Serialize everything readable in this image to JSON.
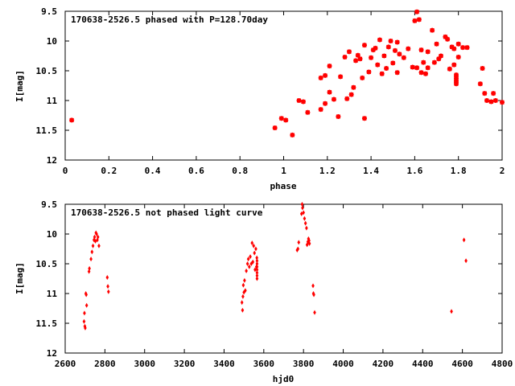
{
  "chart_data": [
    {
      "type": "scatter",
      "title": "170638-2526.5 phased with P=128.70day",
      "xlabel": "phase",
      "ylabel": "I[mag]",
      "xlim": [
        0,
        2
      ],
      "ylim": [
        9.5,
        12
      ],
      "y_inverted": true,
      "x_ticks": [
        "0",
        "0.2",
        "0.4",
        "0.6",
        "0.8",
        "1",
        "1.2",
        "1.4",
        "1.6",
        "1.8",
        "2"
      ],
      "x_tick_values": [
        0,
        0.2,
        0.4,
        0.6,
        0.8,
        1.0,
        1.2,
        1.4,
        1.6,
        1.8,
        2.0
      ],
      "y_ticks": [
        "9.5",
        "10",
        "10.5",
        "11",
        "11.5",
        "12"
      ],
      "y_tick_values": [
        9.5,
        10,
        10.5,
        11,
        11.5,
        12
      ],
      "grid": false,
      "marker_color": "#ff0000",
      "points": [
        [
          0.03,
          11.33
        ],
        [
          0.96,
          11.46
        ],
        [
          0.99,
          11.3
        ],
        [
          1.01,
          11.33
        ],
        [
          1.04,
          11.58
        ],
        [
          1.07,
          11.0
        ],
        [
          1.09,
          11.02
        ],
        [
          1.11,
          11.2
        ],
        [
          1.17,
          11.15
        ],
        [
          1.17,
          10.62
        ],
        [
          1.19,
          10.58
        ],
        [
          1.19,
          11.05
        ],
        [
          1.21,
          10.42
        ],
        [
          1.21,
          10.86
        ],
        [
          1.23,
          10.98
        ],
        [
          1.25,
          11.27
        ],
        [
          1.26,
          10.6
        ],
        [
          1.28,
          10.27
        ],
        [
          1.29,
          10.97
        ],
        [
          1.3,
          10.18
        ],
        [
          1.31,
          10.9
        ],
        [
          1.32,
          10.78
        ],
        [
          1.33,
          10.33
        ],
        [
          1.34,
          10.24
        ],
        [
          1.35,
          10.3
        ],
        [
          1.36,
          10.62
        ],
        [
          1.37,
          10.07
        ],
        [
          1.37,
          11.3
        ],
        [
          1.39,
          10.52
        ],
        [
          1.4,
          10.28
        ],
        [
          1.41,
          10.15
        ],
        [
          1.42,
          10.12
        ],
        [
          1.43,
          10.4
        ],
        [
          1.44,
          9.98
        ],
        [
          1.45,
          10.55
        ],
        [
          1.46,
          10.25
        ],
        [
          1.47,
          10.46
        ],
        [
          1.48,
          10.1
        ],
        [
          1.49,
          10.0
        ],
        [
          1.5,
          10.37
        ],
        [
          1.51,
          10.16
        ],
        [
          1.52,
          10.53
        ],
        [
          1.52,
          10.02
        ],
        [
          1.53,
          10.22
        ],
        [
          1.55,
          10.28
        ],
        [
          1.57,
          10.13
        ],
        [
          1.59,
          10.44
        ],
        [
          1.6,
          9.66
        ],
        [
          1.61,
          9.51
        ],
        [
          1.61,
          10.45
        ],
        [
          1.62,
          9.64
        ],
        [
          1.63,
          10.53
        ],
        [
          1.63,
          10.15
        ],
        [
          1.64,
          10.36
        ],
        [
          1.65,
          10.55
        ],
        [
          1.66,
          10.45
        ],
        [
          1.66,
          10.18
        ],
        [
          1.68,
          9.82
        ],
        [
          1.69,
          10.36
        ],
        [
          1.7,
          10.05
        ],
        [
          1.71,
          10.3
        ],
        [
          1.72,
          10.25
        ],
        [
          1.74,
          9.93
        ],
        [
          1.75,
          9.97
        ],
        [
          1.76,
          10.47
        ],
        [
          1.77,
          10.1
        ],
        [
          1.78,
          10.13
        ],
        [
          1.78,
          10.4
        ],
        [
          1.79,
          10.57
        ],
        [
          1.79,
          10.6
        ],
        [
          1.79,
          10.63
        ],
        [
          1.79,
          10.66
        ],
        [
          1.79,
          10.69
        ],
        [
          1.79,
          10.72
        ],
        [
          1.8,
          10.05
        ],
        [
          1.8,
          10.27
        ],
        [
          1.82,
          10.11
        ],
        [
          1.84,
          10.11
        ],
        [
          1.9,
          10.72
        ],
        [
          1.91,
          10.46
        ],
        [
          1.92,
          10.88
        ],
        [
          1.93,
          11.0
        ],
        [
          1.95,
          11.02
        ],
        [
          1.96,
          10.88
        ],
        [
          1.97,
          11.0
        ],
        [
          2.0,
          11.03
        ]
      ]
    },
    {
      "type": "scatter",
      "title": "170638-2526.5 not phased light curve",
      "xlabel": "hjd0",
      "ylabel": "I[mag]",
      "xlim": [
        2600,
        4800
      ],
      "ylim": [
        9.5,
        12
      ],
      "y_inverted": true,
      "x_ticks": [
        "2600",
        "2800",
        "3000",
        "3200",
        "3400",
        "3600",
        "3800",
        "4000",
        "4200",
        "4400",
        "4600",
        "4800"
      ],
      "x_tick_values": [
        2600,
        2800,
        3000,
        3200,
        3400,
        3600,
        3800,
        4000,
        4200,
        4400,
        4600,
        4800
      ],
      "y_ticks": [
        "9.5",
        "10",
        "10.5",
        "11",
        "11.5",
        "12"
      ],
      "y_tick_values": [
        9.5,
        10,
        10.5,
        11,
        11.5,
        12
      ],
      "grid": false,
      "marker_color": "#ff0000",
      "points": [
        [
          2695,
          11.47
        ],
        [
          2697,
          11.33
        ],
        [
          2699,
          11.55
        ],
        [
          2701,
          11.58
        ],
        [
          2704,
          11.0
        ],
        [
          2706,
          11.02
        ],
        [
          2708,
          11.2
        ],
        [
          2720,
          10.63
        ],
        [
          2722,
          10.58
        ],
        [
          2730,
          10.42
        ],
        [
          2735,
          10.3
        ],
        [
          2740,
          10.2
        ],
        [
          2745,
          10.1
        ],
        [
          2748,
          10.05
        ],
        [
          2752,
          10.12
        ],
        [
          2755,
          9.98
        ],
        [
          2758,
          10.0
        ],
        [
          2762,
          10.1
        ],
        [
          2765,
          10.05
        ],
        [
          2770,
          10.2
        ],
        [
          2812,
          10.73
        ],
        [
          2815,
          10.88
        ],
        [
          2818,
          10.97
        ],
        [
          3490,
          11.15
        ],
        [
          3493,
          11.28
        ],
        [
          3495,
          11.05
        ],
        [
          3497,
          10.86
        ],
        [
          3500,
          10.98
        ],
        [
          3503,
          10.78
        ],
        [
          3507,
          10.95
        ],
        [
          3512,
          10.62
        ],
        [
          3518,
          10.5
        ],
        [
          3522,
          10.42
        ],
        [
          3527,
          10.55
        ],
        [
          3532,
          10.38
        ],
        [
          3537,
          10.5
        ],
        [
          3541,
          10.15
        ],
        [
          3545,
          10.47
        ],
        [
          3549,
          10.2
        ],
        [
          3553,
          10.32
        ],
        [
          3556,
          10.6
        ],
        [
          3560,
          10.25
        ],
        [
          3563,
          10.55
        ],
        [
          3565,
          10.4
        ],
        [
          3566,
          10.45
        ],
        [
          3566,
          10.5
        ],
        [
          3566,
          10.55
        ],
        [
          3566,
          10.6
        ],
        [
          3566,
          10.65
        ],
        [
          3566,
          10.7
        ],
        [
          3566,
          10.75
        ],
        [
          3768,
          10.27
        ],
        [
          3772,
          10.25
        ],
        [
          3776,
          10.14
        ],
        [
          3790,
          9.66
        ],
        [
          3793,
          9.5
        ],
        [
          3795,
          9.56
        ],
        [
          3800,
          9.64
        ],
        [
          3805,
          9.74
        ],
        [
          3810,
          9.82
        ],
        [
          3815,
          9.9
        ],
        [
          3818,
          10.18
        ],
        [
          3822,
          10.13
        ],
        [
          3825,
          10.08
        ],
        [
          3828,
          10.11
        ],
        [
          3830,
          10.16
        ],
        [
          3848,
          10.87
        ],
        [
          3850,
          11.0
        ],
        [
          3852,
          11.02
        ],
        [
          3856,
          11.32
        ],
        [
          4545,
          11.3
        ],
        [
          4608,
          10.1
        ],
        [
          4618,
          10.45
        ]
      ]
    }
  ]
}
